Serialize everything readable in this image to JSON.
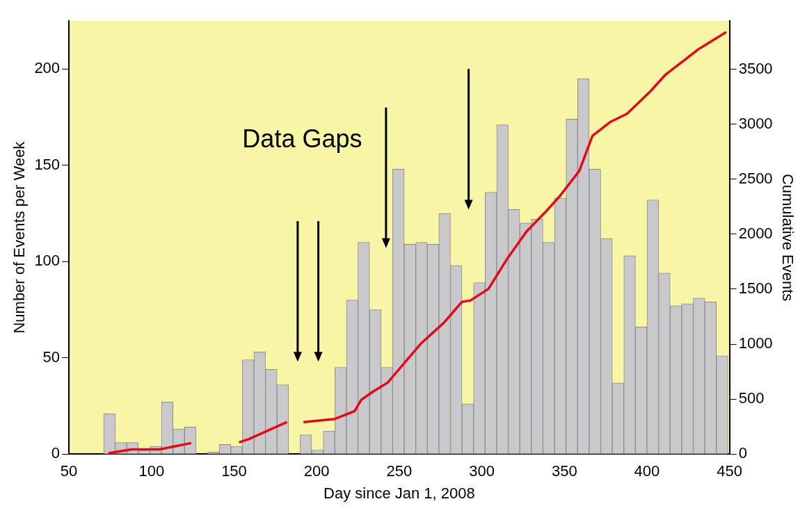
{
  "chart_data": {
    "type": "histogram",
    "xlabel": "Day since Jan 1, 2008",
    "ylabel": "Number of Events per Week",
    "y2label": "Cumulative Events",
    "bins": [
      71,
      78,
      85,
      92,
      99,
      106,
      113,
      120,
      127,
      134,
      141,
      148,
      155,
      162,
      169,
      176,
      183,
      190,
      197,
      204,
      211,
      218,
      225,
      232,
      239,
      246,
      253,
      260,
      267,
      274,
      281,
      288,
      295,
      302,
      309,
      316,
      323,
      330,
      337,
      344,
      351,
      358,
      365,
      372,
      379,
      386,
      393,
      400,
      407,
      414,
      421,
      428,
      435,
      442,
      449
    ],
    "values": [
      21,
      6,
      6,
      2,
      4,
      27,
      13,
      14,
      0,
      1,
      5,
      4,
      49,
      53,
      44,
      36,
      0,
      10,
      2,
      12,
      45,
      80,
      110,
      75,
      45,
      148,
      109,
      110,
      109,
      125,
      98,
      26,
      89,
      136,
      171,
      127,
      120,
      122,
      110,
      133,
      174,
      195,
      148,
      112,
      37,
      103,
      66,
      132,
      94,
      77,
      78,
      81,
      79,
      51
    ],
    "color": "#c9c9cb",
    "series": [
      {
        "type": "line",
        "axis": "y2",
        "color": "#e4081a",
        "x": [
          74,
          88,
          105,
          124,
          130,
          153,
          159,
          182,
          186,
          192,
          211,
          223,
          227,
          234,
          243,
          244,
          263,
          277,
          288,
          293,
          304,
          315,
          327,
          338,
          347,
          359,
          367,
          378,
          388,
          402,
          411,
          431,
          448
        ],
        "values": [
          8,
          43,
          43,
          100,
          null,
          106,
          136,
          291,
          null,
          291,
          319,
          391,
          493,
          567,
          650,
          667,
          1003,
          1194,
          1385,
          1396,
          1502,
          1768,
          2023,
          2193,
          2342,
          2575,
          2894,
          3022,
          3096,
          3298,
          3447,
          3680,
          3838
        ]
      }
    ],
    "xlim": [
      50,
      450
    ],
    "xticks": [
      50,
      100,
      150,
      200,
      250,
      300,
      350,
      400,
      450
    ],
    "ylim": [
      0,
      225
    ],
    "yticks": [
      0,
      50,
      100,
      150,
      200
    ],
    "y2lim": [
      0,
      3940
    ],
    "y2ticks": [
      0,
      500,
      1000,
      1500,
      2000,
      2500,
      3000,
      3500
    ],
    "annotations": [
      "Data Gaps"
    ],
    "grid": false,
    "legend": false
  }
}
